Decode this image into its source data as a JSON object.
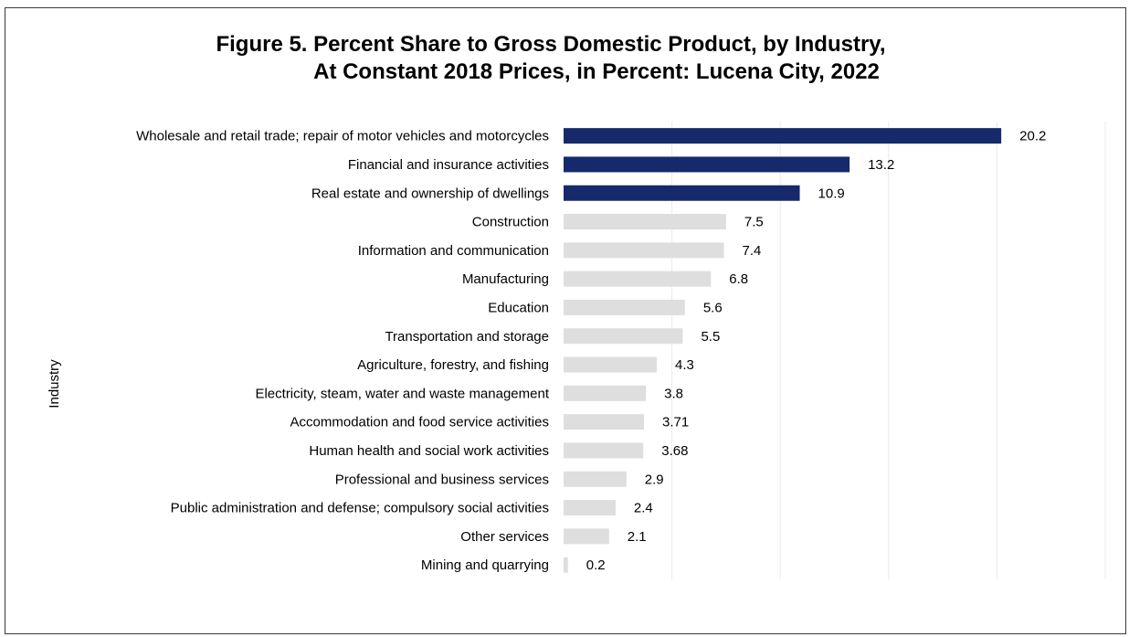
{
  "chart_data": {
    "type": "bar",
    "orientation": "horizontal",
    "title_line1": "Figure 5. Percent Share to Gross Domestic Product, by Industry,",
    "title_line2": "At Constant 2018 Prices, in Percent: Lucena City, 2022",
    "ylabel": "Industry",
    "xlim": [
      0,
      25
    ],
    "grid": true,
    "categories": [
      "Wholesale and retail trade; repair of motor vehicles and motorcycles",
      "Financial and insurance activities",
      "Real estate and ownership of dwellings",
      "Construction",
      "Information and communication",
      "Manufacturing",
      "Education",
      "Transportation and storage",
      "Agriculture, forestry, and fishing",
      "Electricity, steam, water and waste management",
      "Accommodation and food service activities",
      "Human health and social work activities",
      "Professional and business services",
      "Public administration and defense; compulsory social activities",
      "Other services",
      "Mining and quarrying"
    ],
    "values": [
      20.2,
      13.2,
      10.9,
      7.5,
      7.4,
      6.8,
      5.6,
      5.5,
      4.3,
      3.8,
      3.71,
      3.68,
      2.9,
      2.4,
      2.1,
      0.2
    ],
    "value_labels": [
      "20.2",
      "13.2",
      "10.9",
      "7.5",
      "7.4",
      "6.8",
      "5.6",
      "5.5",
      "4.3",
      "3.8",
      "3.71",
      "3.68",
      "2.9",
      "2.4",
      "2.1",
      "0.2"
    ],
    "highlighted": [
      true,
      true,
      true,
      false,
      false,
      false,
      false,
      false,
      false,
      false,
      false,
      false,
      false,
      false,
      false,
      false
    ],
    "colors": {
      "highlight": "#16296b",
      "normal": "#dedede",
      "grid": "#eaeaea"
    }
  }
}
